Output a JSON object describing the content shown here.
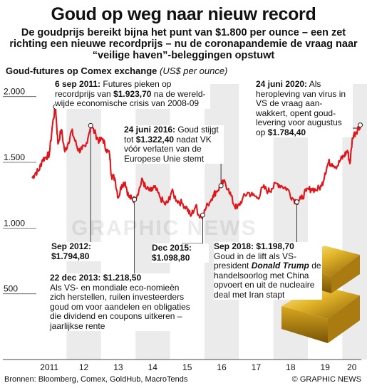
{
  "title": "Goud op weg naar nieuw record",
  "subtitle": "De goudprijs bereikt bijna het punt van $1.800 per ounce – een zet richting een nieuwe recordprijs – nu de coronapandemie de vraag naar “veilige haven”-beleggingen opstuwt",
  "chart_label": "Goud-futures op Comex exchange",
  "chart_unit": "(US$ per ounce)",
  "source": "Bronnen: Bloomberg, Comex, GoldHub, MacroTends",
  "credit": "© GRAPHIC NEWS",
  "watermark": "GRAPHIC NEWS",
  "colors": {
    "line": "#e0141b",
    "stripe": "#ebebeb",
    "text": "#111111"
  },
  "annotations": {
    "sep2011": {
      "date": "6 sep 2011:",
      "text_before": "Futures pieken op recordprijs van",
      "value": "$1.923,70",
      "text_after": "na de wereld-wijde economische crisis van 2008-09"
    },
    "jun2016": {
      "date": "24 juni 2016:",
      "text_before": "Goud stijgt tot",
      "value": "$1.322,40",
      "text_after": "nadat VK vóór verlaten van de Europese Unie stemt"
    },
    "jun2020": {
      "date": "24 juni 2020:",
      "text_before": "Als heropleving van virus in VS de vraag aan-wakkert, opent goud-levering voor augustus op",
      "value": "$1.784,40"
    },
    "sep2012": {
      "date": "Sep 2012:",
      "value": "$1.794,80"
    },
    "dec2015": {
      "date": "Dec 2015:",
      "value": "$1.098,80"
    },
    "dec2013": {
      "date": "22 dec 2013:",
      "value": "$1.218,50",
      "text": "Als VS- en mondiale eco-nomieën zich herstellen, ruilen investeerders goud om voor aandelen en obligaties die dividend en coupons uitkeren – jaarlijkse rente"
    },
    "sep2018": {
      "date": "Sep 2018:",
      "value": "$1.198,70",
      "text_before": "Goud in de lift als VS-president",
      "name": "Donald Trump",
      "text_after": "de handelsoorlog met China opvoert en uit de nucleaire deal met Iran stapt"
    }
  },
  "chart_data": {
    "type": "line",
    "title": "Goud-futures op Comex exchange",
    "ylabel": "US$ per ounce",
    "ylim": [
      0,
      2150
    ],
    "yticks": [
      500,
      1000,
      1500,
      2000
    ],
    "ytick_labels": [
      "500",
      "1.000",
      "1.500",
      "2.000"
    ],
    "xlim": [
      2011.0,
      2020.55
    ],
    "xticks": [
      "2011",
      "12",
      "13",
      "14",
      "15",
      "16",
      "17",
      "18",
      "19",
      "20"
    ],
    "grid": "alternating vertical year bands",
    "series": [
      {
        "x": [
          2011.0,
          2011.1,
          2011.2,
          2011.3,
          2011.4,
          2011.5,
          2011.6,
          2011.68,
          2011.75,
          2011.85,
          2011.95,
          2012.05,
          2012.15,
          2012.25,
          2012.35,
          2012.45,
          2012.55,
          2012.7,
          2012.85,
          2012.95,
          2013.05,
          2013.15,
          2013.25,
          2013.3,
          2013.4,
          2013.5,
          2013.6,
          2013.7,
          2013.8,
          2013.9,
          2013.97,
          2014.1,
          2014.2,
          2014.3,
          2014.45,
          2014.55,
          2014.7,
          2014.85,
          2014.95,
          2015.05,
          2015.2,
          2015.35,
          2015.5,
          2015.6,
          2015.75,
          2015.85,
          2015.95,
          2016.1,
          2016.25,
          2016.35,
          2016.48,
          2016.55,
          2016.7,
          2016.85,
          2016.95,
          2017.1,
          2017.25,
          2017.4,
          2017.55,
          2017.7,
          2017.85,
          2017.95,
          2018.1,
          2018.25,
          2018.4,
          2018.55,
          2018.68,
          2018.8,
          2018.95,
          2019.1,
          2019.25,
          2019.4,
          2019.5,
          2019.6,
          2019.7,
          2019.85,
          2019.95,
          2020.05,
          2020.15,
          2020.22,
          2020.3,
          2020.4,
          2020.48,
          2020.52
        ],
        "y": [
          1380,
          1420,
          1440,
          1520,
          1540,
          1560,
          1800,
          1923,
          1640,
          1750,
          1580,
          1650,
          1740,
          1660,
          1590,
          1600,
          1620,
          1780,
          1710,
          1660,
          1680,
          1600,
          1560,
          1400,
          1380,
          1230,
          1330,
          1350,
          1240,
          1220,
          1218,
          1290,
          1370,
          1300,
          1280,
          1310,
          1240,
          1180,
          1200,
          1280,
          1210,
          1190,
          1150,
          1090,
          1170,
          1090,
          1099,
          1180,
          1250,
          1280,
          1322,
          1350,
          1300,
          1180,
          1150,
          1220,
          1270,
          1250,
          1230,
          1310,
          1280,
          1300,
          1340,
          1320,
          1300,
          1230,
          1199,
          1220,
          1280,
          1300,
          1290,
          1320,
          1420,
          1500,
          1490,
          1470,
          1520,
          1550,
          1590,
          1490,
          1700,
          1730,
          1770,
          1784
        ]
      }
    ]
  }
}
